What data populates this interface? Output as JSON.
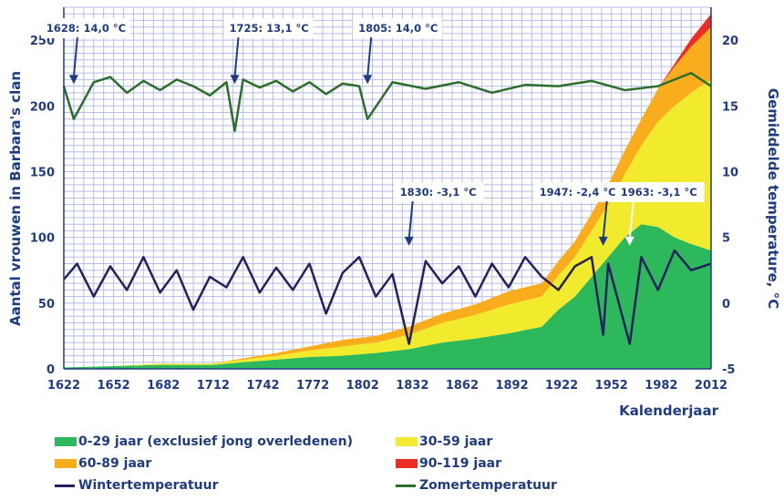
{
  "colors": {
    "axis_text": "#1f3b82",
    "grid": "#b7bde6",
    "age_0_29": "#2eb85c",
    "age_30_59": "#f1ea2d",
    "age_60_89": "#f9ad1c",
    "age_90_119": "#ed2c24",
    "winter": "#26215e",
    "summer": "#2c6e2b"
  },
  "chart_data": {
    "type": "area",
    "xlabel": "Kalenderjaar",
    "ylabel_left": "Aantal vrouwen in Barbara's clan",
    "ylabel_right": "Gemiddelde temperature, °C",
    "xlim": [
      1622,
      2012
    ],
    "ylim_left": [
      0,
      275
    ],
    "ylim_right": [
      -5,
      22.5
    ],
    "x_ticks": [
      "1622",
      "1652",
      "1682",
      "1712",
      "1742",
      "1772",
      "1802",
      "1832",
      "1862",
      "1892",
      "1922",
      "1952",
      "1982",
      "2012"
    ],
    "y_ticks_left": [
      "0",
      "50",
      "100",
      "150",
      "200",
      "250"
    ],
    "y_ticks_right": [
      "-5",
      "0",
      "5",
      "10",
      "15",
      "20"
    ],
    "grid": true,
    "stacked_series": [
      {
        "name": "0-29 jaar (exclusief jong overledenen)",
        "x": [
          1622,
          1650,
          1680,
          1712,
          1730,
          1750,
          1770,
          1790,
          1810,
          1830,
          1850,
          1870,
          1890,
          1910,
          1920,
          1930,
          1940,
          1950,
          1960,
          1970,
          1980,
          1990,
          2000,
          2012
        ],
        "values": [
          1,
          2,
          3,
          3,
          5,
          7,
          9,
          10,
          12,
          15,
          20,
          23,
          27,
          32,
          45,
          55,
          70,
          85,
          100,
          110,
          108,
          100,
          95,
          90
        ]
      },
      {
        "name": "30-59 jaar",
        "x": [
          1622,
          1650,
          1680,
          1712,
          1730,
          1750,
          1770,
          1790,
          1810,
          1830,
          1850,
          1870,
          1890,
          1910,
          1920,
          1930,
          1940,
          1950,
          1960,
          1970,
          1980,
          1990,
          2000,
          2012
        ],
        "values": [
          0,
          0,
          1,
          1,
          2,
          3,
          5,
          7,
          8,
          11,
          15,
          18,
          22,
          23,
          26,
          30,
          35,
          40,
          48,
          60,
          80,
          100,
          115,
          130
        ]
      },
      {
        "name": "60-89 jaar",
        "x": [
          1622,
          1650,
          1680,
          1712,
          1730,
          1750,
          1770,
          1790,
          1810,
          1830,
          1850,
          1870,
          1890,
          1910,
          1920,
          1930,
          1940,
          1950,
          1960,
          1970,
          1980,
          1990,
          2000,
          2012
        ],
        "values": [
          0,
          0,
          0,
          0,
          1,
          2,
          3,
          5,
          5,
          6,
          7,
          8,
          10,
          10,
          11,
          12,
          13,
          15,
          18,
          20,
          25,
          30,
          35,
          40
        ]
      },
      {
        "name": "90-119 jaar",
        "x": [
          1622,
          1650,
          1680,
          1712,
          1730,
          1750,
          1770,
          1790,
          1810,
          1830,
          1850,
          1870,
          1890,
          1910,
          1920,
          1930,
          1940,
          1950,
          1960,
          1970,
          1980,
          1990,
          2000,
          2012
        ],
        "values": [
          0,
          0,
          0,
          0,
          0,
          0,
          0,
          0,
          0,
          0,
          0,
          0,
          0,
          0,
          0,
          0,
          0,
          0,
          0,
          0,
          0,
          2,
          6,
          10
        ]
      }
    ],
    "line_series": [
      {
        "name": "Wintertemperatuur",
        "axis": "right",
        "x": [
          1622,
          1630,
          1640,
          1650,
          1660,
          1670,
          1680,
          1690,
          1700,
          1710,
          1720,
          1730,
          1740,
          1750,
          1760,
          1770,
          1780,
          1790,
          1800,
          1810,
          1820,
          1830,
          1840,
          1850,
          1860,
          1870,
          1880,
          1890,
          1900,
          1910,
          1920,
          1930,
          1940,
          1947,
          1950,
          1963,
          1970,
          1980,
          1990,
          2000,
          2012
        ],
        "values": [
          1.8,
          3.0,
          0.5,
          2.8,
          1.0,
          3.5,
          0.8,
          2.5,
          -0.5,
          2.0,
          1.2,
          3.5,
          0.8,
          2.7,
          1.0,
          3.0,
          -0.8,
          2.3,
          3.5,
          0.5,
          2.2,
          -3.1,
          3.2,
          1.5,
          2.8,
          0.5,
          3.0,
          1.2,
          3.5,
          2.0,
          1.0,
          2.8,
          3.5,
          -2.4,
          3.0,
          -3.1,
          3.5,
          1.0,
          4.0,
          2.5,
          3.0
        ]
      },
      {
        "name": "Zomertemperatuur",
        "axis": "right",
        "x": [
          1622,
          1628,
          1640,
          1650,
          1660,
          1670,
          1680,
          1690,
          1700,
          1710,
          1720,
          1725,
          1730,
          1740,
          1750,
          1760,
          1770,
          1780,
          1790,
          1800,
          1805,
          1820,
          1840,
          1860,
          1880,
          1900,
          1920,
          1940,
          1960,
          1980,
          1990,
          2000,
          2012
        ],
        "values": [
          16.5,
          14.0,
          16.8,
          17.2,
          16.0,
          16.9,
          16.2,
          17.0,
          16.5,
          15.8,
          16.8,
          13.1,
          17.0,
          16.4,
          16.9,
          16.1,
          16.8,
          15.9,
          16.7,
          16.5,
          14.0,
          16.8,
          16.3,
          16.8,
          16.0,
          16.6,
          16.5,
          16.9,
          16.2,
          16.5,
          17.0,
          17.5,
          16.5
        ]
      }
    ],
    "annotations": [
      {
        "text": "1628: 14,0 °C",
        "x": 1628,
        "y": 14.0
      },
      {
        "text": "1725: 13,1 °C",
        "x": 1725,
        "y": 13.1
      },
      {
        "text": "1805: 14,0 °C",
        "x": 1805,
        "y": 14.0
      },
      {
        "text": "1830: -3,1 °C",
        "x": 1830,
        "y": -3.1
      },
      {
        "text": "1947:  -2,4 °C",
        "x": 1947,
        "y": -2.4
      },
      {
        "text": "1963: -3,1 °C",
        "x": 1963,
        "y": -3.1
      }
    ]
  },
  "legend": {
    "age_0_29": "0-29 jaar (exclusief jong overledenen)",
    "age_30_59": "30-59 jaar",
    "age_60_89": "60-89 jaar",
    "age_90_119": "90-119 jaar",
    "winter": "Wintertemperatuur",
    "summer": "Zomertemperatuur"
  }
}
